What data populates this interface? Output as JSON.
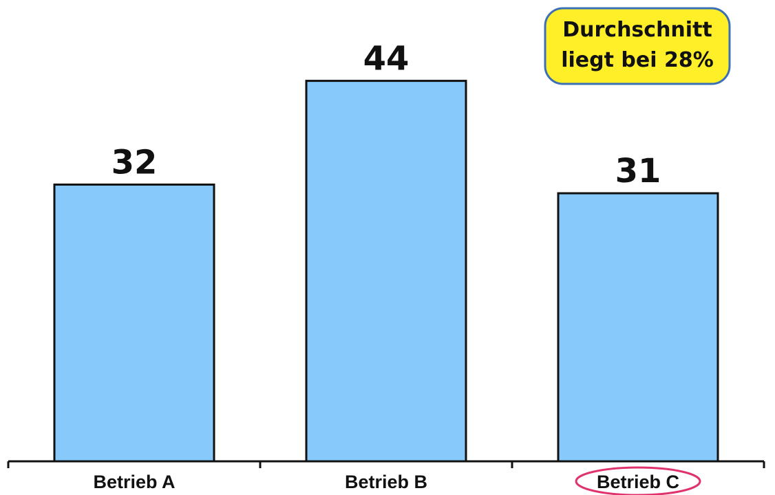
{
  "chart_data": {
    "type": "bar",
    "categories": [
      "Betrieb A",
      "Betrieb B",
      "Betrieb C"
    ],
    "values": [
      32,
      44,
      31
    ],
    "data_labels": [
      "32",
      "44",
      "31"
    ],
    "title": "",
    "xlabel": "",
    "ylabel": "",
    "ylim": [
      0,
      52
    ],
    "grid": false,
    "highlighted_category": "Betrieb C",
    "annotation": {
      "lines": [
        "Durchschnitt",
        "liegt bei 28%"
      ],
      "position": "top-right"
    },
    "colors": {
      "bar_fill": "#87c9fb",
      "bar_stroke": "#111111",
      "annotation_fill": "#ffef29",
      "annotation_stroke": "#3b6fb6",
      "highlight": "#e0336e"
    }
  }
}
